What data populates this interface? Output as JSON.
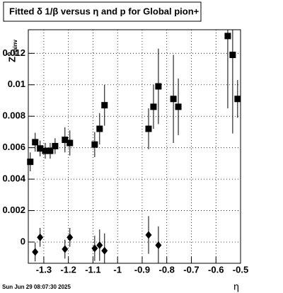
{
  "chart_data": {
    "type": "scatter",
    "title": "Fitted δ 1/β versus η and p for Global pion+",
    "x_label": "η",
    "y_label": "Z",
    "y_label_sup": "δ",
    "y_label_sub": "etainv",
    "timestamp": "Sun Jun 29 08:07:30 2025",
    "xlim": [
      -1.363,
      -0.5
    ],
    "ylim": [
      -0.00135,
      0.0135
    ],
    "xticks": [
      -1.3,
      -1.2,
      -1.1,
      -1,
      -0.9,
      -0.8,
      -0.7,
      -0.6,
      -0.5
    ],
    "yticks": [
      0,
      0.002,
      0.004,
      0.006,
      0.008,
      0.01,
      0.012
    ],
    "grid": true,
    "series": [
      {
        "marker": "square",
        "color": "#000000",
        "x": [
          -1.355,
          -1.335,
          -1.315,
          -1.294,
          -1.274,
          -1.254,
          -1.214,
          -1.194,
          -1.093,
          -1.073,
          -1.053,
          -0.874,
          -0.854,
          -0.834,
          -0.773,
          -0.753,
          -0.552,
          -0.532,
          -0.512
        ],
        "values": [
          0.0051,
          0.00635,
          0.00595,
          0.0058,
          0.0058,
          0.0061,
          0.0065,
          0.0063,
          0.0062,
          0.0072,
          0.0087,
          0.0072,
          0.0086,
          0.0099,
          0.0091,
          0.0086,
          0.0131,
          0.0119,
          0.0091
        ],
        "errors": [
          0.0006,
          0.0006,
          0.0005,
          0.0005,
          0.0005,
          0.0005,
          0.0008,
          0.0008,
          0.0008,
          0.001,
          0.0013,
          0.0013,
          0.0014,
          0.0024,
          0.0028,
          0.0018,
          0.0046,
          0.005,
          0.0012
        ]
      },
      {
        "marker": "diamond",
        "color": "#000000",
        "x": [
          -1.335,
          -1.315,
          -1.214,
          -1.194,
          -1.093,
          -1.073,
          -1.053,
          -0.874,
          -0.834
        ],
        "values": [
          -0.00063,
          0.0003,
          -0.00045,
          0.0003,
          -0.0004,
          -0.0002,
          -0.00055,
          0.00045,
          -0.0002
        ],
        "errors": [
          0.0006,
          0.0006,
          0.0006,
          0.0006,
          0.0008,
          0.001,
          0.0011,
          0.0012,
          0.0012
        ]
      }
    ]
  }
}
